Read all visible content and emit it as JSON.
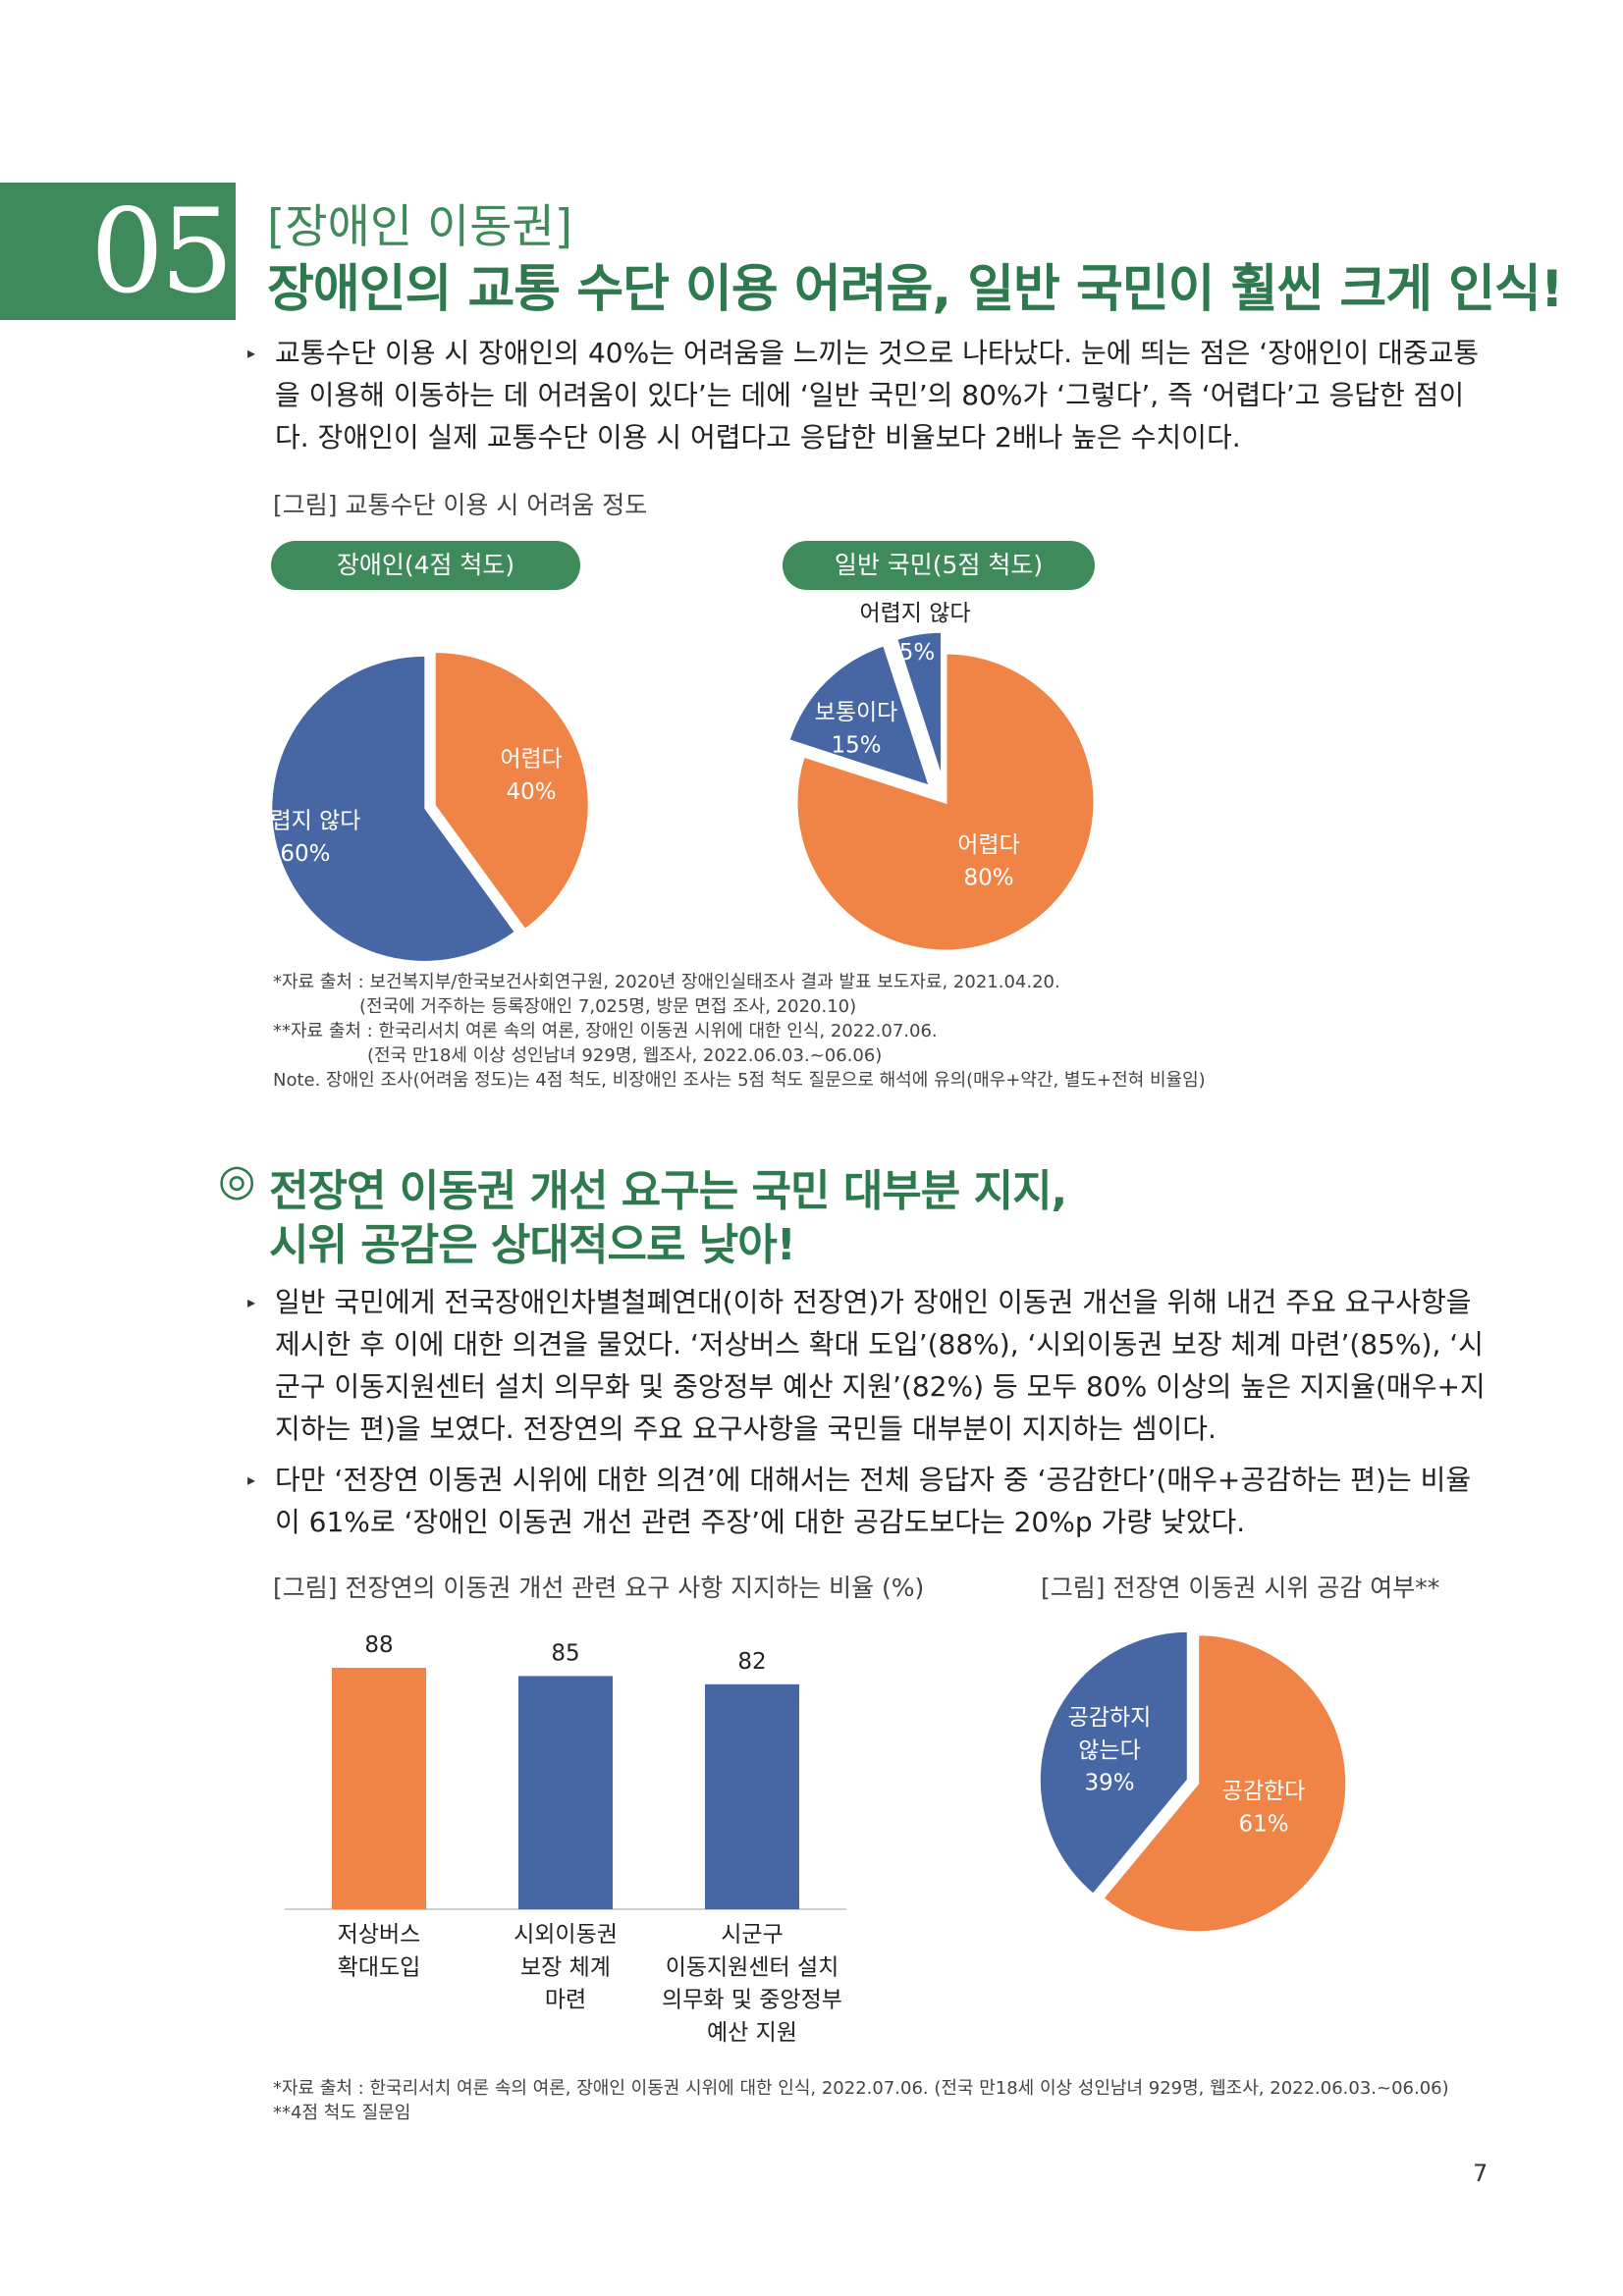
{
  "section": {
    "number": "05",
    "subtitle": "[장애인 이동권]",
    "title": "장애인의 교통 수단 이용 어려움, 일반 국민이 훨씬 크게 인식!"
  },
  "para1": "교통수단 이용 시 장애인의 40%는 어려움을 느끼는 것으로 나타났다. 눈에 띄는 점은 ‘장애인이 대중교통을 이용해 이동하는 데 어려움이 있다’는 데에 ‘일반 국민’의 80%가 ‘그렇다’, 즉 ‘어렵다’고 응답한 점이다. 장애인이 실제 교통수단 이용 시 어렵다고 응답한 비율보다 2배나 높은 수치이다.",
  "fig1": {
    "caption": "[그림] 교통수단 이용 시 어려움 정도",
    "pill_left": "장애인(4점 척도)",
    "pill_right": "일반 국민(5점 척도)"
  },
  "notes1": {
    "line1": "*자료 출처 : 보건복지부/한국보건사회연구원, 2020년 장애인실태조사 결과 발표 보도자료, 2021.04.20.",
    "line2": "(전국에 거주하는 등록장애인 7,025명, 방문 면접 조사, 2020.10)",
    "line3": "**자료 출처 : 한국리서치 여론 속의 여론, 장애인 이동권 시위에 대한 인식, 2022.07.06.",
    "line4": "(전국 만18세 이상 성인남녀 929명, 웹조사, 2022.06.03.~06.06)",
    "line5": "Note. 장애인 조사(어려움 정도)는 4점 척도, 비장애인 조사는 5점 척도 질문으로 해석에 유의(매우+약간, 별도+전혀 비율임)"
  },
  "section2": {
    "mark": "◎",
    "title_line1": "전장연 이동권 개선 요구는 국민 대부분 지지,",
    "title_line2": "시위 공감은 상대적으로 낮아!"
  },
  "para2": "일반 국민에게 전국장애인차별철폐연대(이하 전장연)가 장애인 이동권 개선을 위해 내건 주요 요구사항을 제시한 후 이에 대한 의견을 물었다. ‘저상버스 확대 도입’(88%), ‘시외이동권 보장 체계 마련’(85%), ‘시군구 이동지원센터 설치 의무화 및 중앙정부 예산 지원’(82%) 등 모두 80% 이상의 높은 지지율(매우+지지하는 편)을 보였다. 전장연의 주요 요구사항을 국민들 대부분이 지지하는 셈이다.",
  "para3": "다만 ‘전장연 이동권 시위에 대한 의견’에 대해서는 전체 응답자 중 ‘공감한다’(매우+공감하는 편)는 비율이 61%로 ‘장애인 이동권 개선 관련 주장’에 대한 공감도보다는 20%p 가량 낮았다.",
  "fig2": {
    "caption_left": "[그림] 전장연의 이동권 개선 관련 요구 사항 지지하는 비율 (%)",
    "caption_right": "[그림] 전장연 이동권 시위 공감 여부**"
  },
  "notes2": {
    "line1": "*자료 출처 : 한국리서치 여론 속의 여론, 장애인 이동권 시위에 대한 인식, 2022.07.06. (전국 만18세 이상 성인남녀 929명, 웹조사, 2022.06.03.~06.06)",
    "line2": "**4점 척도 질문임"
  },
  "page_number": "7",
  "colors": {
    "green": "#3f8a5a",
    "orange": "#f08446",
    "blue": "#4767a4"
  },
  "chart_data": [
    {
      "type": "pie",
      "slices": [
        {
          "label": "어렵다",
          "value": 40,
          "color": "#f08446"
        },
        {
          "label": "어렵지 않다",
          "value": 60,
          "color": "#4767a4"
        }
      ]
    },
    {
      "type": "pie",
      "slices": [
        {
          "label": "어렵다",
          "value": 80,
          "color": "#f08446"
        },
        {
          "label": "보통이다",
          "value": 15,
          "color": "#4767a4"
        },
        {
          "label": "어렵지 않다",
          "value": 5,
          "color": "#4767a4"
        }
      ]
    },
    {
      "type": "bar",
      "categories": [
        [
          "저상버스",
          "확대도입"
        ],
        [
          "시외이동권",
          "보장 체계",
          "마련"
        ],
        [
          "시군구",
          "이동지원센터 설치",
          "의무화 및 중앙정부",
          "예산 지원"
        ]
      ],
      "values": [
        88,
        85,
        82
      ],
      "colors": [
        "#f08446",
        "#4767a4",
        "#4767a4"
      ]
    },
    {
      "type": "pie",
      "slices": [
        {
          "label": "공감한다",
          "value": 61,
          "color": "#f08446"
        },
        {
          "label": "공감하지 않는다",
          "value": 39,
          "color": "#4767a4"
        }
      ]
    }
  ]
}
